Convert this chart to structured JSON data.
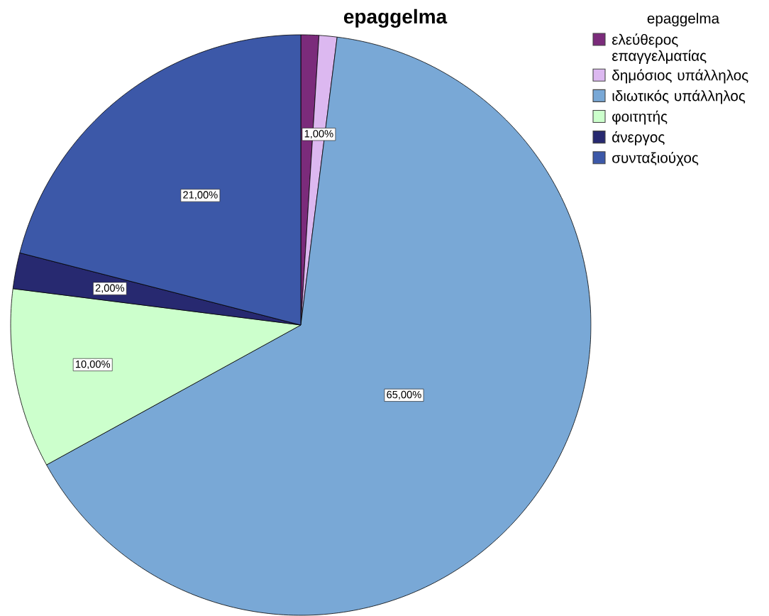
{
  "chart_data": {
    "type": "pie",
    "title": "epaggelma",
    "legend_title": "epaggelma",
    "categories": [
      "ελεύθερος επαγγελματίας",
      "δημόσιος υπάλληλος",
      "ιδιωτικός υπάλληλος",
      "φοιτητής",
      "άνεργος",
      "συνταξιούχος"
    ],
    "values": [
      1,
      1,
      65,
      10,
      2,
      21
    ],
    "colors": [
      "#7b2b7b",
      "#dcb8f0",
      "#79a8d6",
      "#ccffcc",
      "#272970",
      "#3c58a8"
    ],
    "value_labels": [
      null,
      "1,00%",
      "65,00%",
      "10,00%",
      "2,00%",
      "21,00%"
    ],
    "legend": "top right"
  }
}
